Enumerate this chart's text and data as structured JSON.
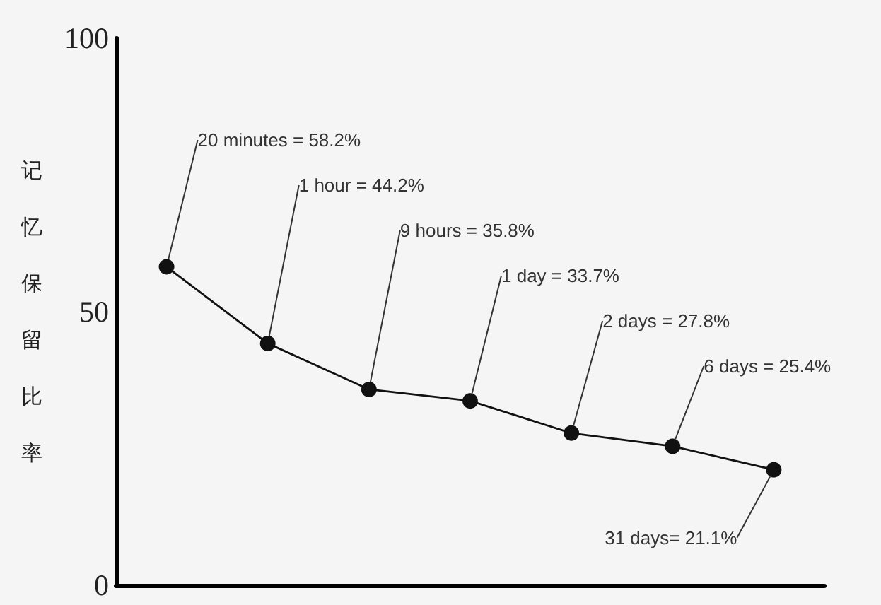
{
  "chart_data": {
    "type": "line",
    "ylabel": "记忆保留比率",
    "categories": [
      null,
      null,
      null,
      null,
      null,
      null,
      null
    ],
    "values": [
      58.2,
      44.2,
      35.8,
      33.7,
      27.8,
      25.4,
      21.1
    ],
    "value_labels": [
      "20 minutes = 58.2%",
      "1 hour = 44.2%",
      "9 hours = 35.8%",
      "1 day = 33.7%",
      "2 days = 27.8%",
      "6 days = 25.4%",
      "31 days= 21.1%"
    ],
    "color": "#111111",
    "ylim": [
      0,
      100
    ],
    "yticks": [
      0,
      50,
      100
    ],
    "tick_labels": "y",
    "marker": "circle",
    "line_style": "solid"
  }
}
